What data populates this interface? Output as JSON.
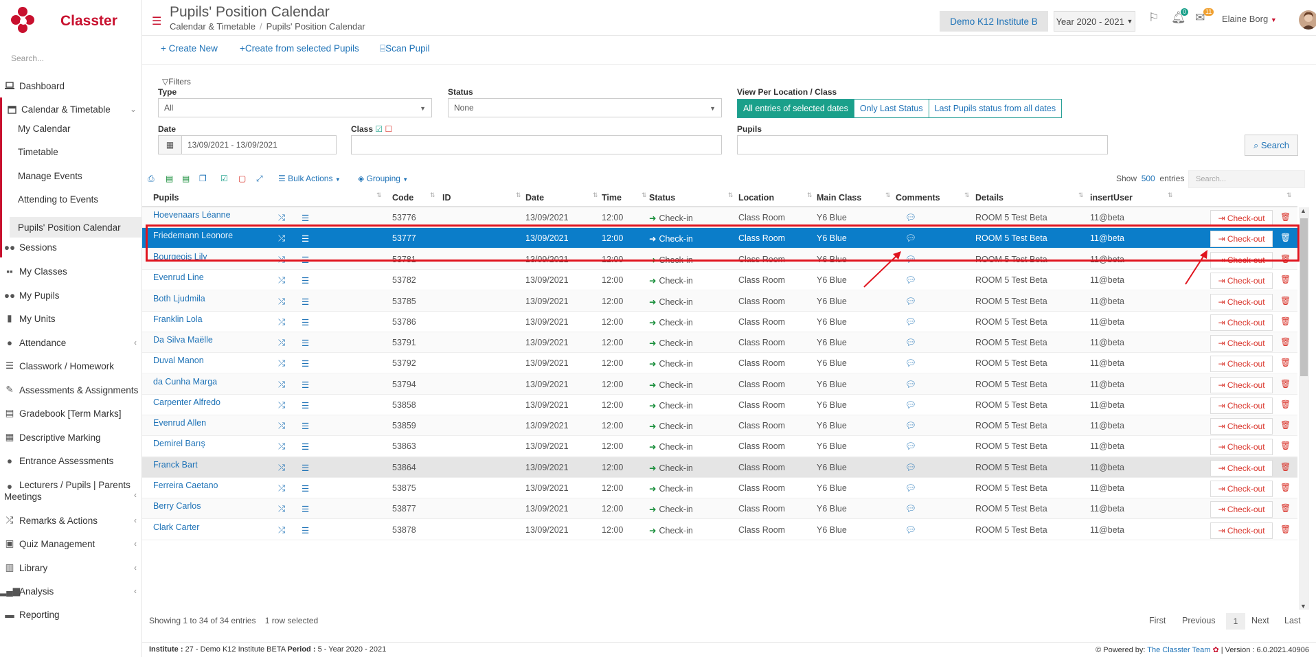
{
  "app": {
    "name": "Classter"
  },
  "sidebar": {
    "search_placeholder": "Search...",
    "items": [
      {
        "label": "Dashboard",
        "icon": "laptop-icon"
      },
      {
        "label": "Calendar & Timetable",
        "icon": "calendar-icon",
        "expanded": true
      },
      {
        "label": "My Calendar"
      },
      {
        "label": "Timetable"
      },
      {
        "label": "Manage Events"
      },
      {
        "label": "Attending to Events"
      },
      {
        "label": "Pupils' Position Calendar",
        "active": true
      },
      {
        "label": "Sessions",
        "icon": "users-icon"
      },
      {
        "label": "My Classes",
        "icon": "classes-icon"
      },
      {
        "label": "My Pupils",
        "icon": "pupils-icon"
      },
      {
        "label": "My Units",
        "icon": "book-icon"
      },
      {
        "label": "Attendance",
        "icon": "attendance-icon"
      },
      {
        "label": "Classwork / Homework",
        "icon": "list-icon"
      },
      {
        "label": "Assessments & Assignments",
        "icon": "edit-icon"
      },
      {
        "label": "Gradebook [Term Marks]",
        "icon": "gradebook-icon"
      },
      {
        "label": "Descriptive Marking",
        "icon": "marking-icon"
      },
      {
        "label": "Entrance Assessments",
        "icon": "entrance-icon"
      },
      {
        "label": "Lecturers / Pupils | Parents",
        "label2": "Meetings",
        "icon": "meeting-icon"
      },
      {
        "label": "Remarks & Actions",
        "icon": "remarks-icon"
      },
      {
        "label": "Quiz Management",
        "icon": "quiz-icon"
      },
      {
        "label": "Library",
        "icon": "library-icon"
      },
      {
        "label": "Analysis",
        "icon": "analysis-icon"
      },
      {
        "label": "Reporting",
        "icon": "print-icon"
      }
    ]
  },
  "header": {
    "title": "Pupils' Position Calendar",
    "breadcrumb": [
      "Calendar & Timetable",
      "Pupils' Position Calendar"
    ],
    "institute": "Demo K12 Institute B",
    "year": "Year 2020 - 2021",
    "notifications": "0",
    "messages": "11",
    "user": "Elaine Borg"
  },
  "toolbar": {
    "create_new": "Create New",
    "create_from_selected": "Create from selected Pupils",
    "scan_pupil": "Scan Pupil"
  },
  "filters": {
    "legend": "Filters",
    "type_label": "Type",
    "type_value": "All",
    "status_label": "Status",
    "status_value": "None",
    "view_label": "View Per Location / Class",
    "view_options": [
      "All entries of selected dates",
      "Only Last Status",
      "Last Pupils status from all dates"
    ],
    "date_label": "Date",
    "date_value": "13/09/2021 - 13/09/2021",
    "class_label": "Class",
    "pupils_label": "Pupils",
    "search_button": "Search"
  },
  "table_tools": {
    "bulk_actions": "Bulk Actions",
    "grouping": "Grouping",
    "show_label": "Show",
    "entries_count": "500",
    "entries_label": "entries",
    "search_placeholder": "Search..."
  },
  "table": {
    "columns": [
      "Pupils",
      "Code",
      "ID",
      "Date",
      "Time",
      "Status",
      "Location",
      "Main Class",
      "Comments",
      "Details",
      "insertUser"
    ],
    "checkout_label": "Check-out",
    "rows": [
      {
        "name": "Hoevenaars Léanne",
        "code": "53776",
        "id": "",
        "date": "13/09/2021",
        "time": "12:00",
        "status": "Check-in",
        "location": "Class Room",
        "class": "Y6 Blue",
        "details": "ROOM 5 Test Beta",
        "user": "11@beta",
        "selected": false
      },
      {
        "name": "Friedemann Leonore",
        "code": "53777",
        "id": "",
        "date": "13/09/2021",
        "time": "12:00",
        "status": "Check-in",
        "location": "Class Room",
        "class": "Y6 Blue",
        "details": "ROOM 5 Test Beta",
        "user": "11@beta",
        "selected": true
      },
      {
        "name": "Bourgeois Lily",
        "code": "53781",
        "id": "",
        "date": "13/09/2021",
        "time": "12:00",
        "status": "Check-in",
        "location": "Class Room",
        "class": "Y6 Blue",
        "details": "ROOM 5 Test Beta",
        "user": "11@beta",
        "selected": false
      },
      {
        "name": "Evenrud Line",
        "code": "53782",
        "id": "",
        "date": "13/09/2021",
        "time": "12:00",
        "status": "Check-in",
        "location": "Class Room",
        "class": "Y6 Blue",
        "details": "ROOM 5 Test Beta",
        "user": "11@beta",
        "selected": false
      },
      {
        "name": "Both Ljudmila",
        "code": "53785",
        "id": "",
        "date": "13/09/2021",
        "time": "12:00",
        "status": "Check-in",
        "location": "Class Room",
        "class": "Y6 Blue",
        "details": "ROOM 5 Test Beta",
        "user": "11@beta",
        "selected": false
      },
      {
        "name": "Franklin Lola",
        "code": "53786",
        "id": "",
        "date": "13/09/2021",
        "time": "12:00",
        "status": "Check-in",
        "location": "Class Room",
        "class": "Y6 Blue",
        "details": "ROOM 5 Test Beta",
        "user": "11@beta",
        "selected": false
      },
      {
        "name": "Da Silva Maëlle",
        "code": "53791",
        "id": "",
        "date": "13/09/2021",
        "time": "12:00",
        "status": "Check-in",
        "location": "Class Room",
        "class": "Y6 Blue",
        "details": "ROOM 5 Test Beta",
        "user": "11@beta",
        "selected": false
      },
      {
        "name": "Duval Manon",
        "code": "53792",
        "id": "",
        "date": "13/09/2021",
        "time": "12:00",
        "status": "Check-in",
        "location": "Class Room",
        "class": "Y6 Blue",
        "details": "ROOM 5 Test Beta",
        "user": "11@beta",
        "selected": false
      },
      {
        "name": "da Cunha Marga",
        "code": "53794",
        "id": "",
        "date": "13/09/2021",
        "time": "12:00",
        "status": "Check-in",
        "location": "Class Room",
        "class": "Y6 Blue",
        "details": "ROOM 5 Test Beta",
        "user": "11@beta",
        "selected": false
      },
      {
        "name": "Carpenter Alfredo",
        "code": "53858",
        "id": "",
        "date": "13/09/2021",
        "time": "12:00",
        "status": "Check-in",
        "location": "Class Room",
        "class": "Y6 Blue",
        "details": "ROOM 5 Test Beta",
        "user": "11@beta",
        "selected": false
      },
      {
        "name": "Evenrud Allen",
        "code": "53859",
        "id": "",
        "date": "13/09/2021",
        "time": "12:00",
        "status": "Check-in",
        "location": "Class Room",
        "class": "Y6 Blue",
        "details": "ROOM 5 Test Beta",
        "user": "11@beta",
        "selected": false
      },
      {
        "name": "Demirel Barış",
        "code": "53863",
        "id": "",
        "date": "13/09/2021",
        "time": "12:00",
        "status": "Check-in",
        "location": "Class Room",
        "class": "Y6 Blue",
        "details": "ROOM 5 Test Beta",
        "user": "11@beta",
        "selected": false
      },
      {
        "name": "Franck Bart",
        "code": "53864",
        "id": "",
        "date": "13/09/2021",
        "time": "12:00",
        "status": "Check-in",
        "location": "Class Room",
        "class": "Y6 Blue",
        "details": "ROOM 5 Test Beta",
        "user": "11@beta",
        "selected": false
      },
      {
        "name": "Ferreira Caetano",
        "code": "53875",
        "id": "",
        "date": "13/09/2021",
        "time": "12:00",
        "status": "Check-in",
        "location": "Class Room",
        "class": "Y6 Blue",
        "details": "ROOM 5 Test Beta",
        "user": "11@beta",
        "selected": false
      },
      {
        "name": "Berry Carlos",
        "code": "53877",
        "id": "",
        "date": "13/09/2021",
        "time": "12:00",
        "status": "Check-in",
        "location": "Class Room",
        "class": "Y6 Blue",
        "details": "ROOM 5 Test Beta",
        "user": "11@beta",
        "selected": false
      },
      {
        "name": "Clark Carter",
        "code": "53878",
        "id": "",
        "date": "13/09/2021",
        "time": "12:00",
        "status": "Check-in",
        "location": "Class Room",
        "class": "Y6 Blue",
        "details": "ROOM 5 Test Beta",
        "user": "11@beta",
        "selected": false
      }
    ]
  },
  "footer_info": {
    "showing": "Showing 1 to 34 of 34 entries",
    "selected": "1 row selected",
    "pager": [
      "First",
      "Previous",
      "1",
      "Next",
      "Last"
    ]
  },
  "footer": {
    "institute_label": "Institute :",
    "institute_value": "27 - Demo K12 Institute BETA",
    "period_label": "Period :",
    "period_value": "5 - Year 2020 - 2021",
    "powered_by": "Powered by:",
    "team": "The Classter Team",
    "version": "| Version : 6.0.2021.40906"
  },
  "colors": {
    "brand": "#c8102e",
    "link": "#1f73b7",
    "selected_row": "#0b7dc9",
    "teal": "#1aa08a",
    "danger": "#d9342b",
    "highlight": "#e0141e"
  }
}
